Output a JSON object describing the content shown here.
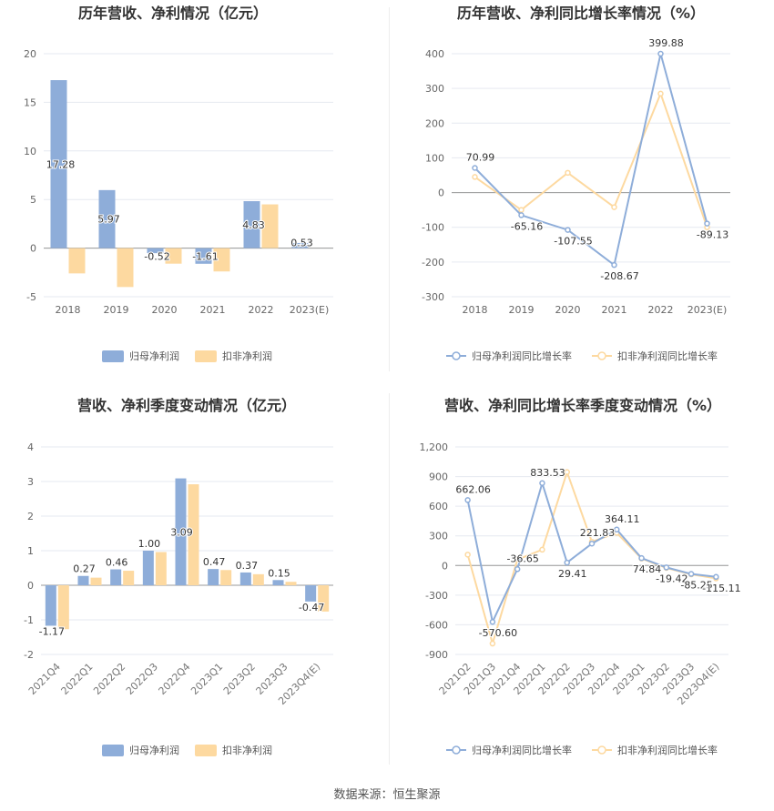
{
  "source_label": "数据来源：恒生聚源",
  "colors": {
    "primary": "#8eadd9",
    "secondary": "#fdd9a0",
    "grid": "#e6e9f0",
    "axis": "#999999",
    "text": "#333333"
  },
  "chart_data": [
    {
      "id": "annual-bar",
      "type": "bar",
      "title": "历年营收、净利情况（亿元）",
      "categories": [
        "2018",
        "2019",
        "2020",
        "2021",
        "2022",
        "2023(E)"
      ],
      "series": [
        {
          "name": "归母净利润",
          "values": [
            17.28,
            5.97,
            -0.52,
            -1.61,
            4.83,
            0.53
          ]
        },
        {
          "name": "扣非净利润",
          "values": [
            -2.6,
            -4.0,
            -1.6,
            -2.4,
            4.5,
            null
          ]
        }
      ],
      "labels": [
        "17.28",
        "5.97",
        "-0.52",
        "-1.61",
        "4.83",
        "0.53"
      ],
      "ylim": [
        -5,
        20
      ],
      "yticks": [
        -5,
        0,
        5,
        10,
        15,
        20
      ],
      "ytick_labels": [
        "-5",
        "0",
        "5",
        "10",
        "15",
        "20"
      ],
      "grid": true,
      "legend": "bottom"
    },
    {
      "id": "annual-line",
      "type": "line",
      "title": "历年营收、净利同比增长率情况（%）",
      "categories": [
        "2018",
        "2019",
        "2020",
        "2021",
        "2022",
        "2023(E)"
      ],
      "series": [
        {
          "name": "归母净利润同比增长率",
          "values": [
            70.99,
            -65.16,
            -107.55,
            -208.67,
            399.88,
            -89.13
          ]
        },
        {
          "name": "扣非净利润同比增长率",
          "values": [
            45,
            -50,
            57,
            -42,
            285,
            -100
          ]
        }
      ],
      "labels": [
        "70.99",
        "-65.16",
        "-107.55",
        "-208.67",
        "399.88",
        "-89.13"
      ],
      "ylim": [
        -300,
        400
      ],
      "yticks": [
        -300,
        -200,
        -100,
        0,
        100,
        200,
        300,
        400
      ],
      "ytick_labels": [
        "-300",
        "-200",
        "-100",
        "0",
        "100",
        "200",
        "300",
        "400"
      ],
      "grid": true,
      "legend": "bottom"
    },
    {
      "id": "quarterly-bar",
      "type": "bar",
      "title": "营收、净利季度变动情况（亿元）",
      "categories": [
        "2021Q4",
        "2022Q1",
        "2022Q2",
        "2022Q3",
        "2022Q4",
        "2023Q1",
        "2023Q2",
        "2023Q3",
        "2023Q4(E)"
      ],
      "series": [
        {
          "name": "归母净利润",
          "values": [
            -1.17,
            0.27,
            0.46,
            1.0,
            3.09,
            0.47,
            0.37,
            0.15,
            -0.47
          ]
        },
        {
          "name": "扣非净利润",
          "values": [
            -1.27,
            0.22,
            0.42,
            0.96,
            2.92,
            0.44,
            0.32,
            0.1,
            -0.76
          ]
        }
      ],
      "labels": [
        "-1.17",
        "0.27",
        "0.46",
        "1.00",
        "3.09",
        "0.47",
        "0.37",
        "0.15",
        "-0.47"
      ],
      "ylim": [
        -2,
        4
      ],
      "yticks": [
        -2,
        -1,
        0,
        1,
        2,
        3,
        4
      ],
      "ytick_labels": [
        "-2",
        "-1",
        "0",
        "1",
        "2",
        "3",
        "4"
      ],
      "grid": true,
      "legend": "bottom"
    },
    {
      "id": "quarterly-line",
      "type": "line",
      "title": "营收、净利同比增长率季度变动情况（%）",
      "categories": [
        "2021Q2",
        "2021Q3",
        "2021Q4",
        "2022Q1",
        "2022Q2",
        "2022Q3",
        "2022Q4",
        "2023Q1",
        "2023Q2",
        "2023Q3",
        "2023Q4(E)"
      ],
      "series": [
        {
          "name": "归母净利润同比增长率",
          "values": [
            662.06,
            -570.6,
            -36.65,
            833.53,
            29.41,
            221.83,
            364.11,
            74.84,
            -19.42,
            -85.25,
            -115.11
          ]
        },
        {
          "name": "扣非净利润同比增长率",
          "values": [
            110,
            -790,
            60,
            160,
            945,
            240,
            330,
            70,
            -25,
            -90,
            -130
          ]
        }
      ],
      "labels": [
        "662.06",
        "-570.60",
        "-36.65",
        "833.53",
        "29.41",
        "221.83",
        "364.11",
        "74.84",
        "-19.42",
        "-85.25",
        "-115.11"
      ],
      "ylim": [
        -900,
        1200
      ],
      "yticks": [
        -900,
        -600,
        -300,
        0,
        300,
        600,
        900,
        1200
      ],
      "ytick_labels": [
        "-900",
        "-600",
        "-300",
        "0",
        "300",
        "600",
        "900",
        "1,200"
      ],
      "grid": true,
      "legend": "bottom"
    }
  ]
}
